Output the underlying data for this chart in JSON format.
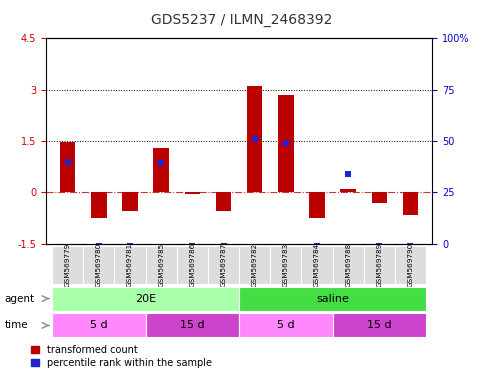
{
  "title": "GDS5237 / ILMN_2468392",
  "samples": [
    "GSM569779",
    "GSM569780",
    "GSM569781",
    "GSM569785",
    "GSM569786",
    "GSM569787",
    "GSM569782",
    "GSM569783",
    "GSM569784",
    "GSM569788",
    "GSM569789",
    "GSM569790"
  ],
  "red_values": [
    1.48,
    -0.75,
    -0.55,
    1.3,
    -0.05,
    -0.55,
    3.1,
    2.85,
    -0.75,
    0.1,
    -0.3,
    -0.65
  ],
  "blue_values": [
    0.9,
    -1.55,
    -1.55,
    0.85,
    -1.55,
    -1.55,
    1.55,
    1.45,
    -1.55,
    0.55,
    -1.55,
    -1.55
  ],
  "ylim": [
    -1.5,
    4.5
  ],
  "yticks_left": [
    -1.5,
    0.0,
    1.5,
    3.0,
    4.5
  ],
  "ytick_labels_left": [
    "-1.5",
    "0",
    "1.5",
    "3",
    "4.5"
  ],
  "right_tick_data_vals": [
    -1.5,
    0.0,
    1.5,
    3.0,
    4.5
  ],
  "right_tick_labels": [
    "0",
    "25",
    "50",
    "75",
    "100%"
  ],
  "hlines": [
    3.0,
    1.5
  ],
  "bar_color": "#BB0000",
  "dot_color": "#2222CC",
  "zero_line_color": "#CC3333",
  "agent_groups": [
    {
      "label": "20E",
      "start": 0,
      "end": 6,
      "color": "#AAFFAA"
    },
    {
      "label": "saline",
      "start": 6,
      "end": 12,
      "color": "#44DD44"
    }
  ],
  "time_groups": [
    {
      "label": "5 d",
      "start": 0,
      "end": 3,
      "color": "#FF88FF"
    },
    {
      "label": "15 d",
      "start": 3,
      "end": 6,
      "color": "#CC44CC"
    },
    {
      "label": "5 d",
      "start": 6,
      "end": 9,
      "color": "#FF88FF"
    },
    {
      "label": "15 d",
      "start": 9,
      "end": 12,
      "color": "#CC44CC"
    }
  ],
  "legend_red": "transformed count",
  "legend_blue": "percentile rank within the sample",
  "bar_width": 0.5,
  "dot_size": 25,
  "left_axis_color": "#CC0000",
  "right_axis_color": "#0000CC",
  "label_fontsize": 7,
  "tick_fontsize": 7,
  "strip_fontsize": 8,
  "title_fontsize": 10
}
